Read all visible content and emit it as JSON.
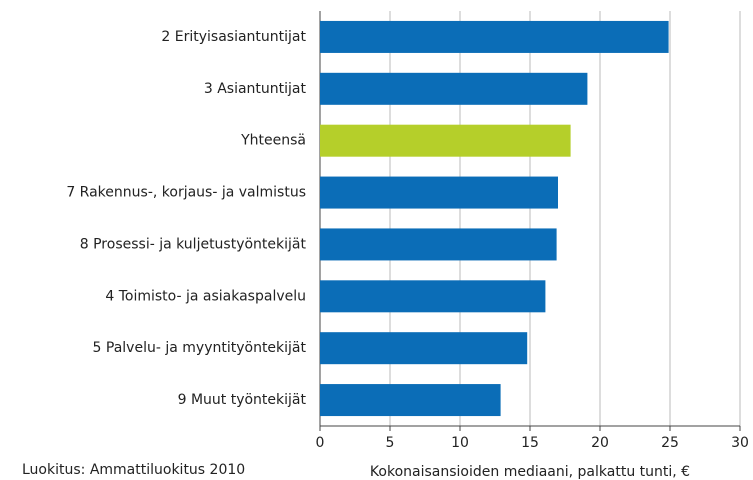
{
  "chart_data": {
    "type": "hbar",
    "categories": [
      "2 Erityisasiantuntijat",
      "3 Asiantuntijat",
      "Yhteensä",
      "7 Rakennus-, korjaus- ja valmistus",
      "8 Prosessi- ja kuljetustyöntekijät",
      "4  Toimisto- ja asiakaspalvelu",
      "5 Palvelu- ja myyntityöntekijät",
      "9 Muut työntekijät"
    ],
    "values": [
      24.9,
      19.1,
      17.9,
      17.0,
      16.9,
      16.1,
      14.8,
      12.9
    ],
    "colors": [
      "#0b6db7",
      "#0b6db7",
      "#b5cf2a",
      "#0b6db7",
      "#0b6db7",
      "#0b6db7",
      "#0b6db7",
      "#0b6db7"
    ],
    "xlim": [
      0,
      30
    ],
    "xticks": [
      0,
      5,
      10,
      15,
      20,
      25,
      30
    ],
    "grid": true,
    "x_label": "Kokonaisansioiden mediaani, palkattu tunti, €",
    "note": "Luokitus: Ammattiluokitus 2010"
  }
}
